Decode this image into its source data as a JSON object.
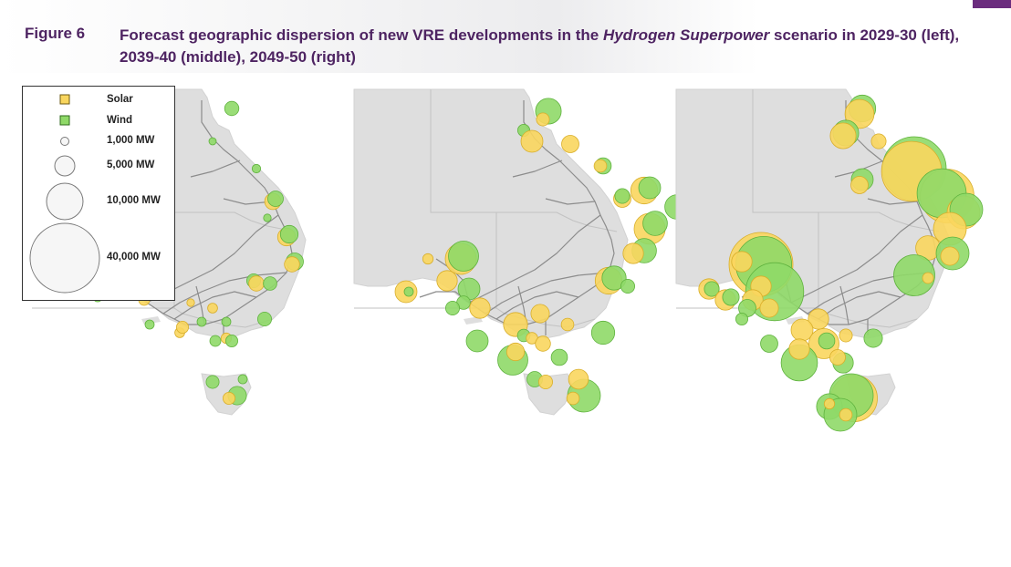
{
  "figure": {
    "label": "Figure 6",
    "title_part1": "Forecast geographic dispersion of new VRE developments in the ",
    "title_scenario": "Hydrogen Superpower",
    "title_part2": " scenario in 2029-30 (left), 2039-40 (middle), 2049-50 (right)"
  },
  "colors": {
    "solar": "#f9d65e",
    "solar_stroke": "#d8ae2a",
    "wind": "#8fd968",
    "wind_stroke": "#5fb23e",
    "land": "#dedede",
    "border": "#c2c2c2",
    "network": "#8c8c8c",
    "accent": "#6b2d7e"
  },
  "legend": {
    "solar_label": "Solar",
    "wind_label": "Wind",
    "sizes": [
      {
        "label": "1,000 MW",
        "mw": 1000
      },
      {
        "label": "5,000 MW",
        "mw": 5000
      },
      {
        "label": "10,000 MW",
        "mw": 10000
      },
      {
        "label": "40,000 MW",
        "mw": 40000
      }
    ]
  },
  "maps": [
    {
      "period": "2029-30",
      "bubbles": [
        {
          "type": "wind",
          "mw": 1700,
          "u": 0.73,
          "v": 0.07
        },
        {
          "type": "wind",
          "mw": 450,
          "u": 0.66,
          "v": 0.19
        },
        {
          "type": "wind",
          "mw": 600,
          "u": 0.82,
          "v": 0.29
        },
        {
          "type": "solar",
          "mw": 2200,
          "u": 0.88,
          "v": 0.41
        },
        {
          "type": "wind",
          "mw": 2000,
          "u": 0.89,
          "v": 0.4
        },
        {
          "type": "wind",
          "mw": 500,
          "u": 0.86,
          "v": 0.47
        },
        {
          "type": "solar",
          "mw": 2600,
          "u": 0.93,
          "v": 0.54
        },
        {
          "type": "wind",
          "mw": 2600,
          "u": 0.94,
          "v": 0.53
        },
        {
          "type": "wind",
          "mw": 2500,
          "u": 0.96,
          "v": 0.63
        },
        {
          "type": "solar",
          "mw": 1900,
          "u": 0.95,
          "v": 0.64
        },
        {
          "type": "wind",
          "mw": 1600,
          "u": 0.81,
          "v": 0.7
        },
        {
          "type": "solar",
          "mw": 1900,
          "u": 0.82,
          "v": 0.71
        },
        {
          "type": "wind",
          "mw": 1500,
          "u": 0.87,
          "v": 0.71
        },
        {
          "type": "wind",
          "mw": 1600,
          "u": 0.85,
          "v": 0.84
        },
        {
          "type": "wind",
          "mw": 700,
          "u": 0.71,
          "v": 0.85
        },
        {
          "type": "solar",
          "mw": 800,
          "u": 0.66,
          "v": 0.8
        },
        {
          "type": "wind",
          "mw": 1900,
          "u": 0.37,
          "v": 0.74
        },
        {
          "type": "solar",
          "mw": 1000,
          "u": 0.41,
          "v": 0.77
        },
        {
          "type": "wind",
          "mw": 700,
          "u": 0.24,
          "v": 0.76
        },
        {
          "type": "solar",
          "mw": 600,
          "u": 0.31,
          "v": 0.72
        },
        {
          "type": "solar",
          "mw": 500,
          "u": 0.24,
          "v": 0.62
        },
        {
          "type": "wind",
          "mw": 400,
          "u": 0.36,
          "v": 0.61
        },
        {
          "type": "wind",
          "mw": 700,
          "u": 0.43,
          "v": 0.86
        },
        {
          "type": "solar",
          "mw": 800,
          "u": 0.54,
          "v": 0.89
        },
        {
          "type": "wind",
          "mw": 700,
          "u": 0.62,
          "v": 0.85
        },
        {
          "type": "solar",
          "mw": 1200,
          "u": 0.55,
          "v": 0.87
        },
        {
          "type": "solar",
          "mw": 900,
          "u": 0.71,
          "v": 0.91
        },
        {
          "type": "wind",
          "mw": 1200,
          "u": 0.73,
          "v": 0.92
        },
        {
          "type": "wind",
          "mw": 1000,
          "u": 0.67,
          "v": 0.92
        },
        {
          "type": "solar",
          "mw": 500,
          "u": 0.58,
          "v": 0.78
        },
        {
          "type": "wind",
          "mw": 1400,
          "u": 0.66,
          "v": 1.07
        },
        {
          "type": "wind",
          "mw": 2800,
          "u": 0.75,
          "v": 1.12
        },
        {
          "type": "solar",
          "mw": 1200,
          "u": 0.72,
          "v": 1.13
        },
        {
          "type": "wind",
          "mw": 700,
          "u": 0.77,
          "v": 1.06
        }
      ]
    },
    {
      "period": "2039-40",
      "bubbles": [
        {
          "type": "wind",
          "mw": 5500,
          "u": 0.71,
          "v": 0.08
        },
        {
          "type": "solar",
          "mw": 1400,
          "u": 0.69,
          "v": 0.11
        },
        {
          "type": "wind",
          "mw": 1200,
          "u": 0.62,
          "v": 0.15
        },
        {
          "type": "solar",
          "mw": 4000,
          "u": 0.65,
          "v": 0.19
        },
        {
          "type": "solar",
          "mw": 2500,
          "u": 0.79,
          "v": 0.2
        },
        {
          "type": "wind",
          "mw": 2200,
          "u": 0.91,
          "v": 0.28
        },
        {
          "type": "solar",
          "mw": 1300,
          "u": 0.9,
          "v": 0.28
        },
        {
          "type": "solar",
          "mw": 6000,
          "u": 1.06,
          "v": 0.37
        },
        {
          "type": "wind",
          "mw": 4000,
          "u": 1.08,
          "v": 0.36
        },
        {
          "type": "solar",
          "mw": 2500,
          "u": 0.98,
          "v": 0.4
        },
        {
          "type": "wind",
          "mw": 1800,
          "u": 0.98,
          "v": 0.39
        },
        {
          "type": "wind",
          "mw": 5000,
          "u": 1.18,
          "v": 0.43
        },
        {
          "type": "solar",
          "mw": 8000,
          "u": 1.08,
          "v": 0.51
        },
        {
          "type": "wind",
          "mw": 5000,
          "u": 1.1,
          "v": 0.49
        },
        {
          "type": "wind",
          "mw": 5000,
          "u": 1.06,
          "v": 0.59
        },
        {
          "type": "solar",
          "mw": 3500,
          "u": 1.02,
          "v": 0.6
        },
        {
          "type": "solar",
          "mw": 6000,
          "u": 0.93,
          "v": 0.7
        },
        {
          "type": "wind",
          "mw": 4800,
          "u": 0.95,
          "v": 0.69
        },
        {
          "type": "wind",
          "mw": 1600,
          "u": 1.0,
          "v": 0.72
        },
        {
          "type": "solar",
          "mw": 8000,
          "u": 0.39,
          "v": 0.62
        },
        {
          "type": "wind",
          "mw": 7500,
          "u": 0.4,
          "v": 0.61
        },
        {
          "type": "solar",
          "mw": 900,
          "u": 0.27,
          "v": 0.62
        },
        {
          "type": "solar",
          "mw": 3500,
          "u": 0.34,
          "v": 0.7
        },
        {
          "type": "solar",
          "mw": 4000,
          "u": 0.19,
          "v": 0.74
        },
        {
          "type": "wind",
          "mw": 700,
          "u": 0.2,
          "v": 0.74
        },
        {
          "type": "wind",
          "mw": 4000,
          "u": 0.42,
          "v": 0.73
        },
        {
          "type": "wind",
          "mw": 1500,
          "u": 0.4,
          "v": 0.78
        },
        {
          "type": "solar",
          "mw": 3500,
          "u": 0.46,
          "v": 0.8
        },
        {
          "type": "wind",
          "mw": 1600,
          "u": 0.36,
          "v": 0.8
        },
        {
          "type": "solar",
          "mw": 4800,
          "u": 0.59,
          "v": 0.86
        },
        {
          "type": "solar",
          "mw": 2800,
          "u": 0.68,
          "v": 0.82
        },
        {
          "type": "solar",
          "mw": 1300,
          "u": 0.78,
          "v": 0.86
        },
        {
          "type": "wind",
          "mw": 4000,
          "u": 0.45,
          "v": 0.92
        },
        {
          "type": "wind",
          "mw": 1300,
          "u": 0.62,
          "v": 0.9
        },
        {
          "type": "solar",
          "mw": 1100,
          "u": 0.65,
          "v": 0.91
        },
        {
          "type": "wind",
          "mw": 4500,
          "u": 0.91,
          "v": 0.89
        },
        {
          "type": "wind",
          "mw": 7500,
          "u": 0.58,
          "v": 0.99
        },
        {
          "type": "solar",
          "mw": 2600,
          "u": 0.59,
          "v": 0.96
        },
        {
          "type": "solar",
          "mw": 1900,
          "u": 0.69,
          "v": 0.93
        },
        {
          "type": "wind",
          "mw": 2200,
          "u": 0.75,
          "v": 0.98
        },
        {
          "type": "wind",
          "mw": 2000,
          "u": 0.66,
          "v": 1.06
        },
        {
          "type": "solar",
          "mw": 1600,
          "u": 0.7,
          "v": 1.07
        },
        {
          "type": "wind",
          "mw": 9000,
          "u": 0.84,
          "v": 1.12
        },
        {
          "type": "solar",
          "mw": 3300,
          "u": 0.82,
          "v": 1.06
        },
        {
          "type": "solar",
          "mw": 1300,
          "u": 0.8,
          "v": 1.13
        }
      ]
    },
    {
      "period": "2049-50",
      "bubbles": [
        {
          "type": "wind",
          "mw": 6000,
          "u": 0.68,
          "v": 0.07
        },
        {
          "type": "solar",
          "mw": 7000,
          "u": 0.67,
          "v": 0.09
        },
        {
          "type": "wind",
          "mw": 5500,
          "u": 0.62,
          "v": 0.16
        },
        {
          "type": "solar",
          "mw": 5500,
          "u": 0.61,
          "v": 0.17
        },
        {
          "type": "solar",
          "mw": 1800,
          "u": 0.74,
          "v": 0.19
        },
        {
          "type": "wind",
          "mw": 34000,
          "u": 0.87,
          "v": 0.29
        },
        {
          "type": "solar",
          "mw": 30000,
          "u": 0.86,
          "v": 0.3
        },
        {
          "type": "wind",
          "mw": 4000,
          "u": 0.68,
          "v": 0.33
        },
        {
          "type": "solar",
          "mw": 2500,
          "u": 0.67,
          "v": 0.35
        },
        {
          "type": "solar",
          "mw": 24000,
          "u": 0.99,
          "v": 0.39
        },
        {
          "type": "wind",
          "mw": 20000,
          "u": 0.97,
          "v": 0.38
        },
        {
          "type": "solar",
          "mw": 9000,
          "u": 1.05,
          "v": 0.45
        },
        {
          "type": "wind",
          "mw": 9000,
          "u": 1.06,
          "v": 0.44
        },
        {
          "type": "solar",
          "mw": 9000,
          "u": 1.0,
          "v": 0.51
        },
        {
          "type": "solar",
          "mw": 5000,
          "u": 0.92,
          "v": 0.58
        },
        {
          "type": "wind",
          "mw": 9000,
          "u": 1.01,
          "v": 0.6
        },
        {
          "type": "solar",
          "mw": 2800,
          "u": 1.0,
          "v": 0.61
        },
        {
          "type": "wind",
          "mw": 14000,
          "u": 0.87,
          "v": 0.68
        },
        {
          "type": "solar",
          "mw": 1000,
          "u": 0.92,
          "v": 0.69
        },
        {
          "type": "solar",
          "mw": 34000,
          "u": 0.31,
          "v": 0.64
        },
        {
          "type": "wind",
          "mw": 26000,
          "u": 0.32,
          "v": 0.64
        },
        {
          "type": "solar",
          "mw": 3500,
          "u": 0.24,
          "v": 0.63
        },
        {
          "type": "wind",
          "mw": 28000,
          "u": 0.36,
          "v": 0.74
        },
        {
          "type": "solar",
          "mw": 3500,
          "u": 0.31,
          "v": 0.72
        },
        {
          "type": "solar",
          "mw": 3500,
          "u": 0.12,
          "v": 0.73
        },
        {
          "type": "wind",
          "mw": 1800,
          "u": 0.13,
          "v": 0.73
        },
        {
          "type": "solar",
          "mw": 3500,
          "u": 0.18,
          "v": 0.77
        },
        {
          "type": "wind",
          "mw": 2300,
          "u": 0.2,
          "v": 0.76
        },
        {
          "type": "solar",
          "mw": 3500,
          "u": 0.28,
          "v": 0.77
        },
        {
          "type": "wind",
          "mw": 2500,
          "u": 0.26,
          "v": 0.8
        },
        {
          "type": "solar",
          "mw": 2800,
          "u": 0.34,
          "v": 0.8
        },
        {
          "type": "wind",
          "mw": 1200,
          "u": 0.24,
          "v": 0.84
        },
        {
          "type": "solar",
          "mw": 3500,
          "u": 0.52,
          "v": 0.84
        },
        {
          "type": "solar",
          "mw": 4000,
          "u": 0.46,
          "v": 0.88
        },
        {
          "type": "solar",
          "mw": 7500,
          "u": 0.54,
          "v": 0.93
        },
        {
          "type": "wind",
          "mw": 2200,
          "u": 0.55,
          "v": 0.92
        },
        {
          "type": "solar",
          "mw": 1400,
          "u": 0.62,
          "v": 0.9
        },
        {
          "type": "wind",
          "mw": 2500,
          "u": 0.34,
          "v": 0.93
        },
        {
          "type": "wind",
          "mw": 11000,
          "u": 0.45,
          "v": 1.0
        },
        {
          "type": "solar",
          "mw": 3500,
          "u": 0.45,
          "v": 0.95
        },
        {
          "type": "wind",
          "mw": 3500,
          "u": 0.61,
          "v": 1.0
        },
        {
          "type": "solar",
          "mw": 2000,
          "u": 0.59,
          "v": 0.98
        },
        {
          "type": "wind",
          "mw": 2800,
          "u": 0.72,
          "v": 0.91
        },
        {
          "type": "solar",
          "mw": 18000,
          "u": 0.65,
          "v": 1.13
        },
        {
          "type": "wind",
          "mw": 16000,
          "u": 0.64,
          "v": 1.12
        },
        {
          "type": "wind",
          "mw": 5500,
          "u": 0.56,
          "v": 1.16
        },
        {
          "type": "wind",
          "mw": 9000,
          "u": 0.6,
          "v": 1.19
        },
        {
          "type": "solar",
          "mw": 1300,
          "u": 0.62,
          "v": 1.19
        },
        {
          "type": "solar",
          "mw": 900,
          "u": 0.56,
          "v": 1.15
        }
      ]
    }
  ]
}
